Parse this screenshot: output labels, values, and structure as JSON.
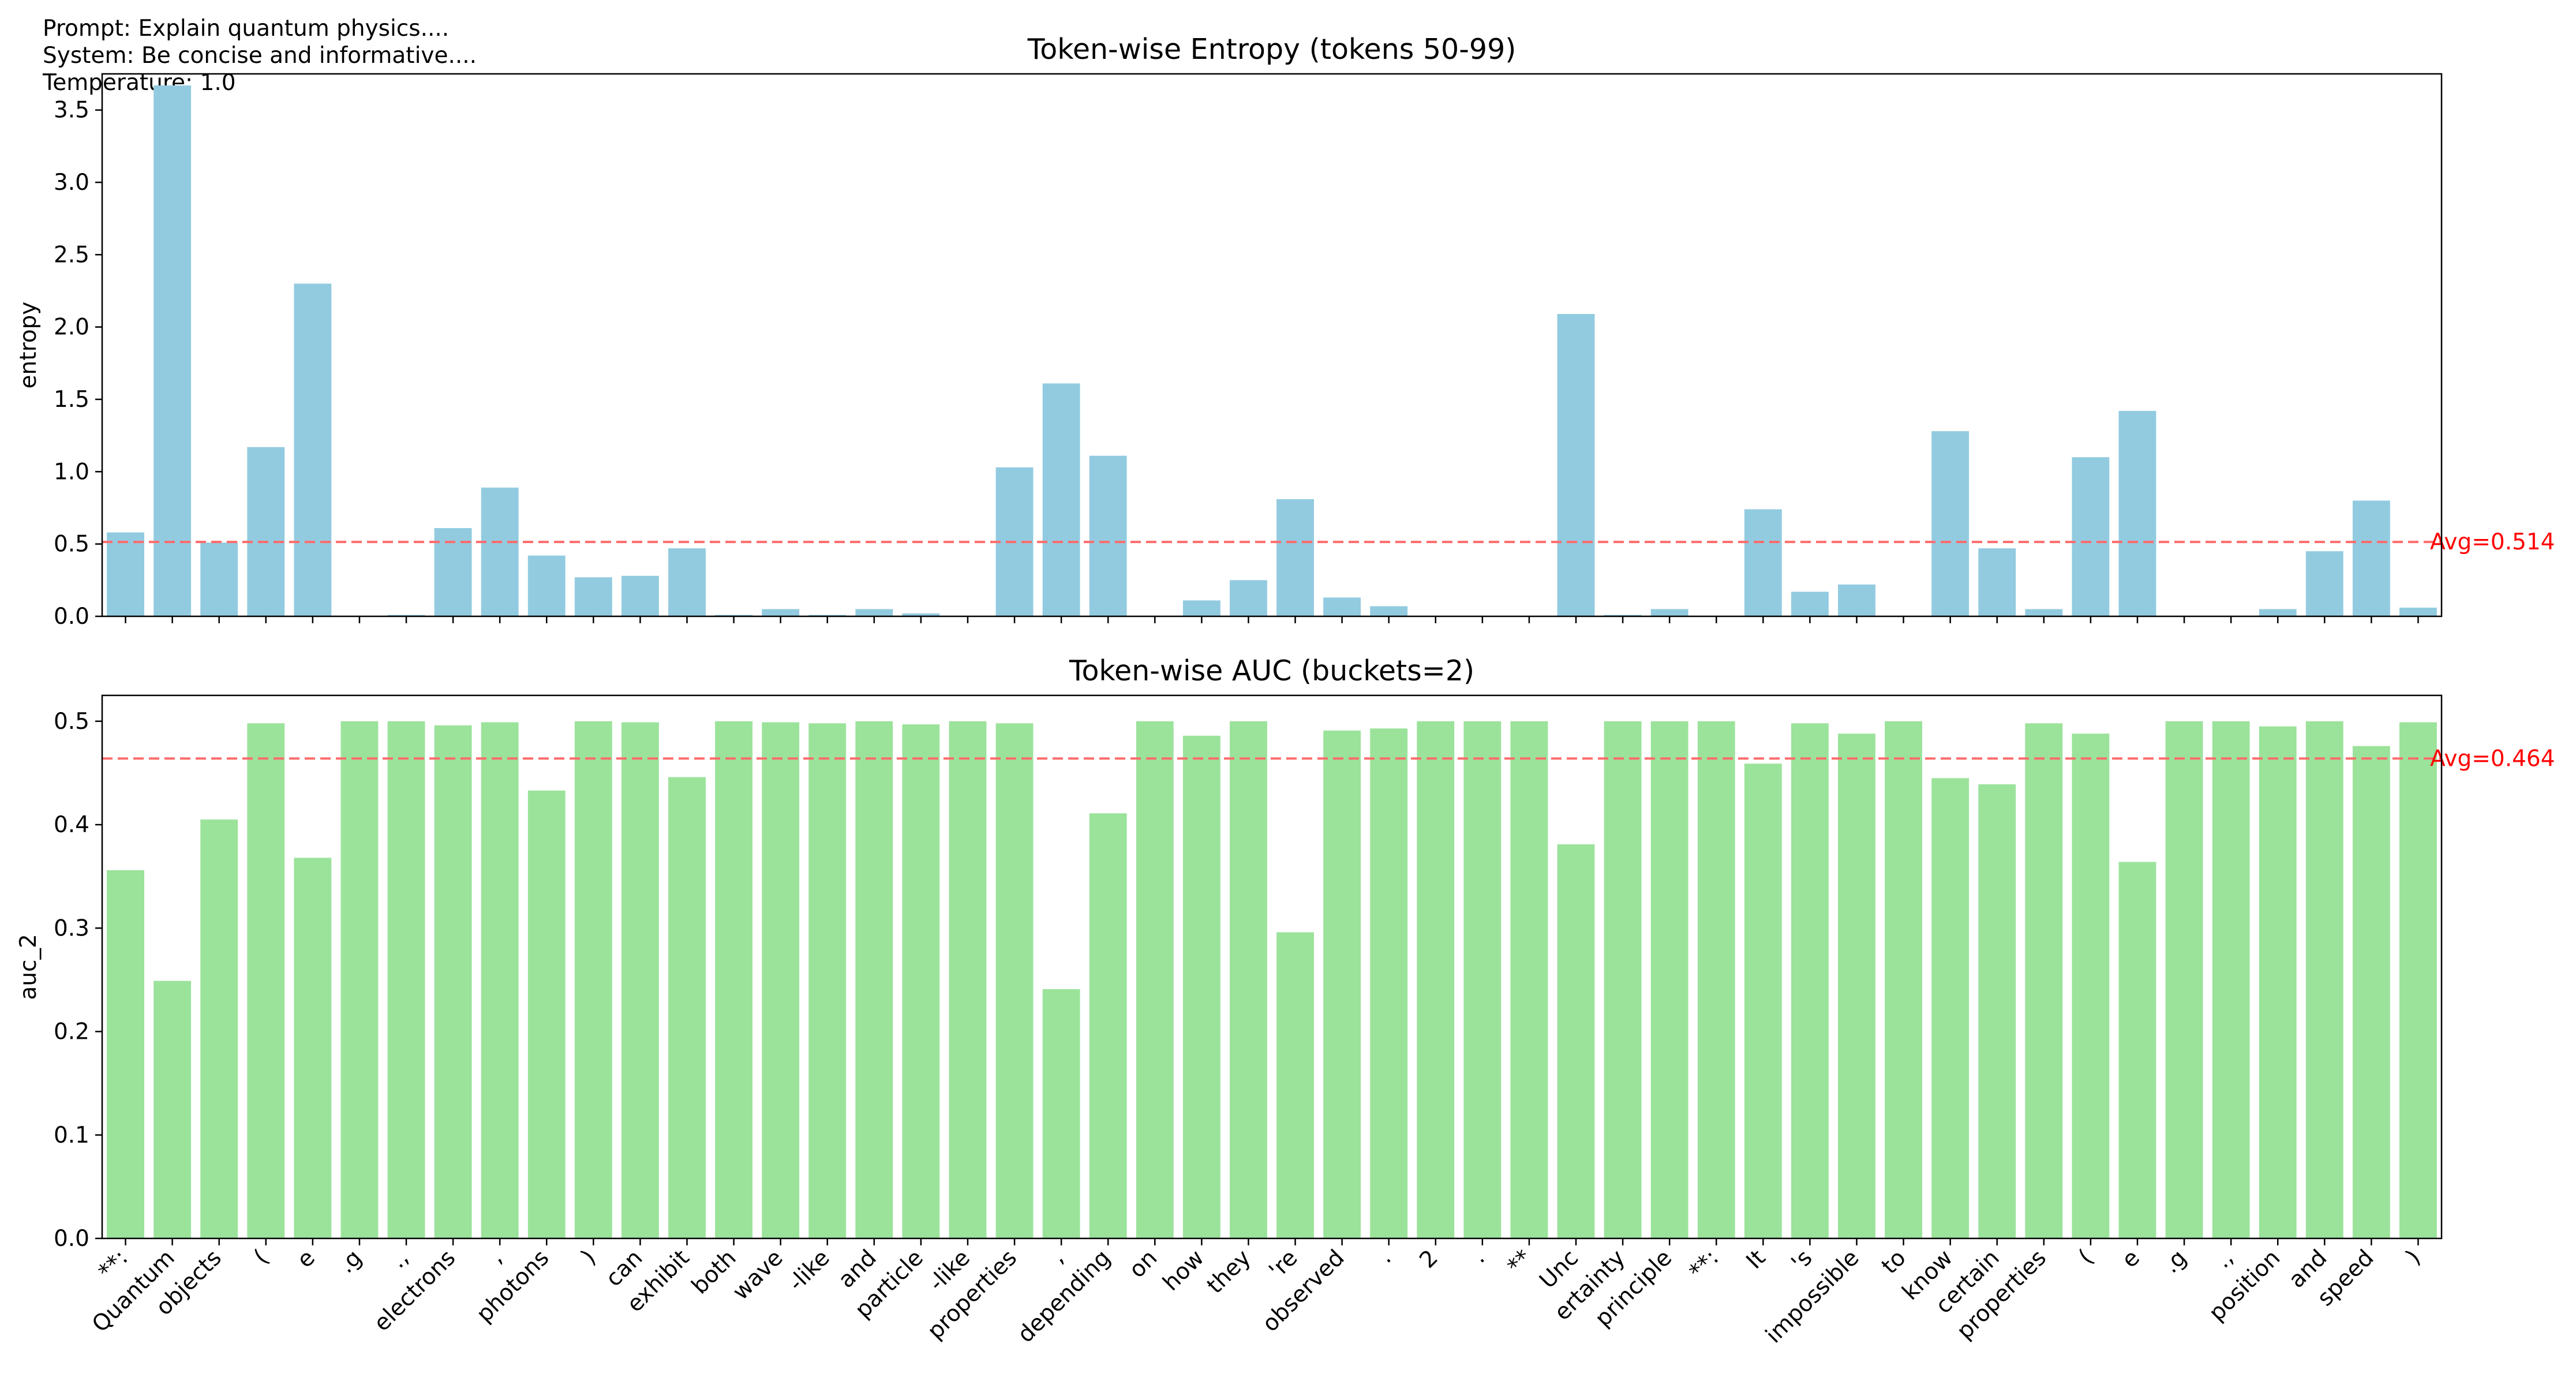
{
  "meta": {
    "prompt": "Prompt: Explain quantum physics....",
    "system": "System: Be concise and informative....",
    "temperature": "Temperature: 1.0"
  },
  "colors": {
    "entropy_bar": "#92cbe0",
    "auc_bar": "#9be39b",
    "avg_line": "#ff6b6b",
    "avg_text": "#ff0000"
  },
  "chart_data": [
    {
      "type": "bar",
      "title": "Token-wise Entropy (tokens 50-99)",
      "ylabel": "entropy",
      "xlabel": "",
      "ylim": [
        0,
        3.75
      ],
      "yticks": [
        0.0,
        0.5,
        1.0,
        1.5,
        2.0,
        2.5,
        3.0,
        3.5
      ],
      "avg_label": "Avg=0.514",
      "avg": 0.514,
      "values": [
        0.58,
        3.67,
        0.51,
        1.17,
        2.3,
        0.0,
        0.01,
        0.61,
        0.89,
        0.42,
        0.27,
        0.28,
        0.47,
        0.01,
        0.05,
        0.01,
        0.05,
        0.02,
        0.0,
        1.03,
        1.61,
        1.11,
        0.0,
        0.11,
        0.25,
        0.81,
        0.13,
        0.07,
        0.0,
        0.0,
        0.0,
        2.09,
        0.01,
        0.05,
        0.0,
        0.74,
        0.17,
        0.22,
        0.0,
        1.28,
        0.47,
        0.05,
        1.1,
        1.42,
        0.0,
        0.0,
        0.05,
        0.45,
        0.8,
        0.06
      ]
    },
    {
      "type": "bar",
      "title": "Token-wise AUC (buckets=2)",
      "ylabel": "auc_2",
      "xlabel": "",
      "ylim": [
        0,
        0.525
      ],
      "yticks": [
        0.0,
        0.1,
        0.2,
        0.3,
        0.4,
        0.5
      ],
      "avg_label": "Avg=0.464",
      "avg": 0.464,
      "values": [
        0.356,
        0.249,
        0.405,
        0.498,
        0.368,
        0.5,
        0.5,
        0.496,
        0.499,
        0.433,
        0.5,
        0.499,
        0.446,
        0.5,
        0.499,
        0.498,
        0.5,
        0.497,
        0.5,
        0.498,
        0.241,
        0.411,
        0.5,
        0.486,
        0.5,
        0.296,
        0.491,
        0.493,
        0.5,
        0.5,
        0.5,
        0.381,
        0.5,
        0.5,
        0.5,
        0.459,
        0.498,
        0.488,
        0.5,
        0.445,
        0.439,
        0.498,
        0.488,
        0.364,
        0.5,
        0.5,
        0.495,
        0.5,
        0.476,
        0.499
      ]
    }
  ],
  "categories": [
    "**:",
    "Quantum",
    "objects",
    "(",
    "e",
    ".g",
    ".,",
    "electrons",
    ",",
    "photons",
    ")",
    "can",
    "exhibit",
    "both",
    "wave",
    "-like",
    "and",
    "particle",
    "-like",
    "properties",
    ",",
    "depending",
    "on",
    "how",
    "they",
    "'re",
    "observed",
    ".",
    "2",
    ".",
    "**",
    "Unc",
    "ertainty",
    "principle",
    "**:",
    "It",
    "'s",
    "impossible",
    "to",
    "know",
    "certain",
    "properties",
    "(",
    "e",
    ".g",
    ".,",
    "position",
    "and",
    "speed",
    ")"
  ]
}
